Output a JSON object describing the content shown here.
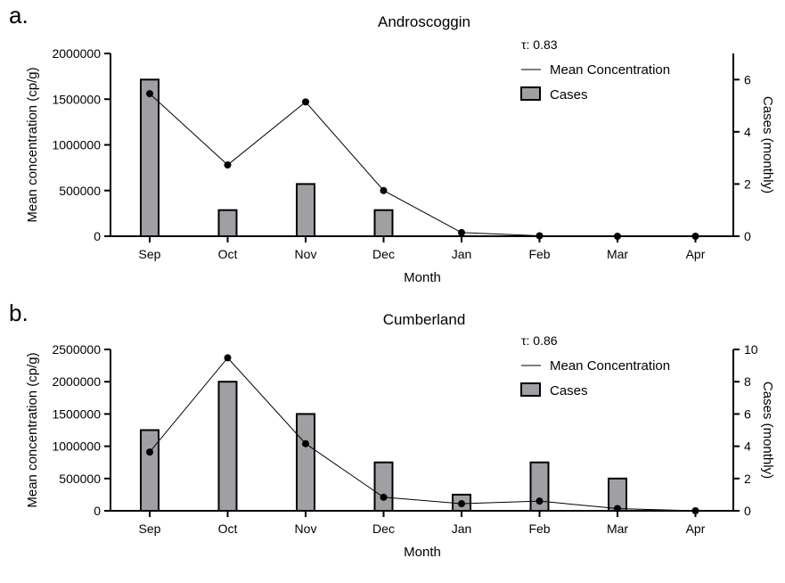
{
  "chart_data": [
    {
      "panel_label": "a.",
      "type": "bar",
      "title": "Androscoggin",
      "xlabel": "Month",
      "ylabel": "Mean concentration (cp/g)",
      "y2label": "Cases (monthly)",
      "tau": "τ: 0.83",
      "categories": [
        "Sep",
        "Oct",
        "Nov",
        "Dec",
        "Jan",
        "Feb",
        "Mar",
        "Apr"
      ],
      "ylim": [
        0,
        2000000
      ],
      "y_ticks": [
        "0",
        "500000",
        "1000000",
        "1500000",
        "2000000"
      ],
      "y2lim": [
        0,
        7
      ],
      "y2_ticks": [
        "0",
        "2",
        "4",
        "6"
      ],
      "series": [
        {
          "name": "Cases",
          "type": "bar",
          "axis": "right",
          "values": [
            6,
            1,
            2,
            1,
            0,
            0,
            0,
            0
          ]
        },
        {
          "name": "Mean Concentration",
          "type": "line",
          "axis": "left",
          "values": [
            1560000,
            780000,
            1470000,
            500000,
            40000,
            5000,
            0,
            0
          ]
        }
      ],
      "legend": "top-right",
      "grid": false,
      "colors": {
        "bar_fill": "#a0a0a4",
        "bar_edge": "#000000",
        "line": "#000000"
      }
    },
    {
      "panel_label": "b.",
      "type": "bar",
      "title": "Cumberland",
      "xlabel": "Month",
      "ylabel": "Mean concentration (cp/g)",
      "y2label": "Cases (monthly)",
      "tau": "τ: 0.86",
      "categories": [
        "Sep",
        "Oct",
        "Nov",
        "Dec",
        "Jan",
        "Feb",
        "Mar",
        "Apr"
      ],
      "ylim": [
        0,
        2500000
      ],
      "y_ticks": [
        "0",
        "500000",
        "1000000",
        "1500000",
        "2000000",
        "2500000"
      ],
      "y2lim": [
        0,
        10
      ],
      "y2_ticks": [
        "0",
        "2",
        "4",
        "6",
        "8",
        "10"
      ],
      "series": [
        {
          "name": "Cases",
          "type": "bar",
          "axis": "right",
          "values": [
            5,
            8,
            6,
            3,
            1,
            3,
            2,
            0
          ]
        },
        {
          "name": "Mean Concentration",
          "type": "line",
          "axis": "left",
          "values": [
            910000,
            2370000,
            1040000,
            210000,
            110000,
            150000,
            35000,
            0
          ]
        }
      ],
      "legend": "top-right",
      "grid": false,
      "colors": {
        "bar_fill": "#a0a0a4",
        "bar_edge": "#000000",
        "line": "#000000"
      }
    }
  ]
}
